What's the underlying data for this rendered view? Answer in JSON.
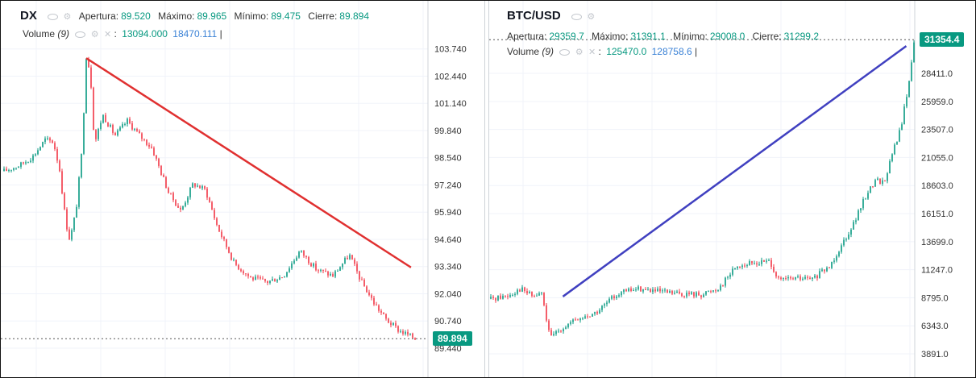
{
  "colors": {
    "up": "#089981",
    "down": "#f23645",
    "dx_trend": "#e03030",
    "btc_trend": "#4040c0",
    "volume_blue": "#3b82d6",
    "grid": "#f0f3fa"
  },
  "chart_data": [
    {
      "type": "candlestick",
      "symbol": "DX",
      "legend": {
        "open_label": "Apertura:",
        "open": "89.520",
        "high_label": "Máximo:",
        "high": "89.965",
        "low_label": "Mínimo:",
        "low": "89.475",
        "close_label": "Cierre:",
        "close": "89.894"
      },
      "volume": {
        "label": "Volume",
        "period": "(9)",
        "value1": "13094.000",
        "value2": "18470.111"
      },
      "yticks": [
        103.74,
        102.44,
        101.14,
        99.84,
        98.54,
        97.24,
        95.94,
        94.64,
        93.34,
        92.04,
        90.74,
        89.44
      ],
      "ytick_labels": [
        "103.740",
        "102.440",
        "101.140",
        "99.840",
        "98.540",
        "97.240",
        "95.940",
        "94.640",
        "93.340",
        "92.040",
        "90.740",
        "89.440"
      ],
      "ylim": [
        88.9,
        104.5
      ],
      "last_price": "89.894",
      "last_value": 89.894,
      "path": [
        [
          0,
          97.9
        ],
        [
          0.04,
          98.2
        ],
        [
          0.07,
          98.6
        ],
        [
          0.1,
          99.4
        ],
        [
          0.12,
          99.3
        ],
        [
          0.135,
          98.0
        ],
        [
          0.15,
          95.5
        ],
        [
          0.16,
          94.6
        ],
        [
          0.175,
          96.0
        ],
        [
          0.19,
          99.0
        ],
        [
          0.2,
          103.4
        ],
        [
          0.21,
          102.6
        ],
        [
          0.22,
          99.2
        ],
        [
          0.24,
          100.6
        ],
        [
          0.27,
          99.6
        ],
        [
          0.3,
          100.3
        ],
        [
          0.33,
          99.6
        ],
        [
          0.36,
          99.0
        ],
        [
          0.4,
          96.9
        ],
        [
          0.43,
          96.0
        ],
        [
          0.46,
          97.3
        ],
        [
          0.49,
          97.0
        ],
        [
          0.52,
          95.2
        ],
        [
          0.56,
          93.5
        ],
        [
          0.6,
          92.8
        ],
        [
          0.64,
          92.6
        ],
        [
          0.68,
          92.9
        ],
        [
          0.72,
          94.1
        ],
        [
          0.76,
          93.2
        ],
        [
          0.8,
          92.9
        ],
        [
          0.84,
          93.9
        ],
        [
          0.87,
          92.6
        ],
        [
          0.9,
          91.6
        ],
        [
          0.93,
          90.8
        ],
        [
          0.96,
          90.3
        ],
        [
          1.0,
          89.9
        ]
      ],
      "trendline": [
        [
          0.2,
          103.3
        ],
        [
          0.99,
          93.3
        ]
      ]
    },
    {
      "type": "candlestick",
      "symbol": "BTC/USD",
      "legend": {
        "open_label": "Apertura:",
        "open": "29359.7",
        "high_label": "Máximo:",
        "high": "31391.1",
        "low_label": "Mínimo:",
        "low": "29008.0",
        "close_label": "Cierre:",
        "close": "31299.2"
      },
      "volume": {
        "label": "Volume",
        "period": "(9)",
        "value1": "125470.0",
        "value2": "128758.6"
      },
      "yticks": [
        28411.0,
        25959.0,
        23507.0,
        21055.0,
        18603.0,
        16151.0,
        13699.0,
        11247.0,
        8795.0,
        6343.0,
        3891.0
      ],
      "ytick_labels": [
        "28411.0",
        "25959.0",
        "23507.0",
        "21055.0",
        "18603.0",
        "16151.0",
        "13699.0",
        "11247.0",
        "8795.0",
        "6343.0",
        "3891.0"
      ],
      "ylim": [
        3400,
        32500
      ],
      "last_price": "31354.4",
      "last_value": 31354.4,
      "path": [
        [
          0,
          8700
        ],
        [
          0.04,
          9000
        ],
        [
          0.07,
          9600
        ],
        [
          0.1,
          8900
        ],
        [
          0.12,
          9200
        ],
        [
          0.14,
          5200
        ],
        [
          0.16,
          6000
        ],
        [
          0.2,
          6800
        ],
        [
          0.25,
          7500
        ],
        [
          0.3,
          9200
        ],
        [
          0.35,
          9600
        ],
        [
          0.4,
          9300
        ],
        [
          0.45,
          9100
        ],
        [
          0.5,
          9100
        ],
        [
          0.54,
          9700
        ],
        [
          0.58,
          11600
        ],
        [
          0.62,
          11800
        ],
        [
          0.66,
          12000
        ],
        [
          0.68,
          10300
        ],
        [
          0.72,
          10500
        ],
        [
          0.76,
          10400
        ],
        [
          0.8,
          11500
        ],
        [
          0.83,
          13500
        ],
        [
          0.86,
          15500
        ],
        [
          0.89,
          18000
        ],
        [
          0.91,
          19100
        ],
        [
          0.93,
          18900
        ],
        [
          0.95,
          21500
        ],
        [
          0.97,
          23800
        ],
        [
          0.99,
          28000
        ],
        [
          1.0,
          31300
        ]
      ],
      "trendline": [
        [
          0.17,
          8900
        ],
        [
          0.98,
          30800
        ]
      ]
    }
  ]
}
